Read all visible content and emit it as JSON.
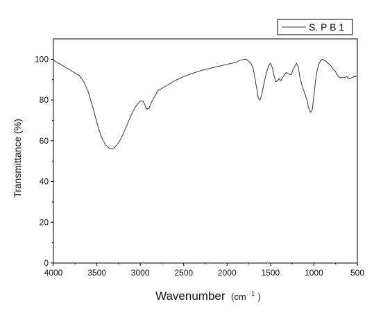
{
  "chart_data": {
    "type": "line",
    "xlabel": "Wavenumber",
    "xlabel_unit": "(cm",
    "xlabel_unit_exp": "-1",
    "xlabel_unit_close": ")",
    "ylabel": "Transmittance (%)",
    "xlim": [
      4000,
      500
    ],
    "ylim": [
      0,
      110
    ],
    "x_ticks": [
      4000,
      3500,
      3000,
      2500,
      2000,
      1500,
      1000,
      500
    ],
    "y_ticks": [
      0,
      20,
      40,
      60,
      80,
      100
    ],
    "grid": false,
    "legend_position": "top-right",
    "series": [
      {
        "name": "S. P B 1",
        "color": "#333333",
        "x": [
          4000,
          3900,
          3800,
          3700,
          3650,
          3600,
          3550,
          3500,
          3450,
          3400,
          3350,
          3300,
          3250,
          3200,
          3150,
          3100,
          3050,
          3000,
          2970,
          2950,
          2930,
          2900,
          2870,
          2850,
          2800,
          2700,
          2600,
          2500,
          2400,
          2300,
          2200,
          2100,
          2000,
          1900,
          1850,
          1800,
          1780,
          1750,
          1720,
          1700,
          1680,
          1660,
          1640,
          1620,
          1600,
          1580,
          1560,
          1540,
          1520,
          1500,
          1480,
          1460,
          1440,
          1420,
          1400,
          1380,
          1360,
          1340,
          1320,
          1300,
          1280,
          1260,
          1240,
          1220,
          1200,
          1180,
          1160,
          1140,
          1120,
          1100,
          1080,
          1060,
          1040,
          1020,
          1000,
          980,
          960,
          940,
          920,
          900,
          880,
          860,
          840,
          820,
          800,
          780,
          760,
          740,
          720,
          700,
          680,
          660,
          640,
          620,
          600,
          580,
          560,
          540,
          520,
          510
        ],
        "y": [
          99.5,
          97,
          94.5,
          92,
          89,
          84,
          77,
          69,
          62,
          58,
          56,
          56.5,
          59,
          63,
          68,
          73,
          77,
          79.5,
          79.5,
          78,
          75.5,
          76,
          79,
          80.5,
          84.5,
          87,
          89.5,
          91.5,
          93,
          94.5,
          95.5,
          96.5,
          97.5,
          98.5,
          99.5,
          100,
          100,
          99,
          97.5,
          95.5,
          91,
          86,
          81,
          80,
          82.5,
          87,
          91,
          94.5,
          97,
          98,
          96,
          92,
          89,
          89.5,
          90.5,
          89.5,
          91,
          92.5,
          93.5,
          93,
          92.5,
          92.5,
          95,
          96.5,
          98,
          96,
          91,
          87.5,
          85,
          82.5,
          80,
          76,
          74,
          75,
          82,
          90,
          95,
          98,
          99.5,
          100,
          99.5,
          99,
          98,
          97.5,
          96.5,
          95,
          94.5,
          93,
          91.5,
          91,
          91,
          91,
          91,
          91.5,
          90.5,
          90.5,
          91,
          91.5,
          91.5,
          92
        ]
      }
    ]
  }
}
